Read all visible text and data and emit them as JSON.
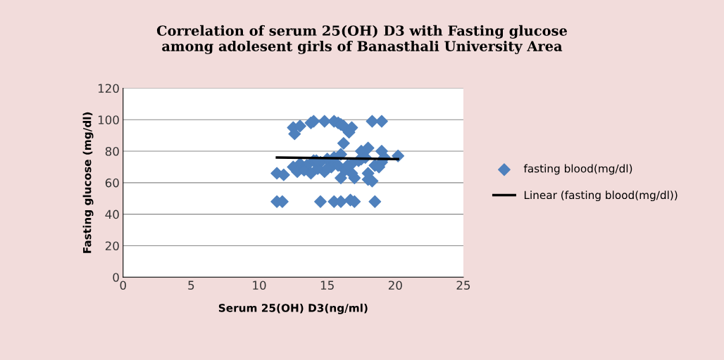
{
  "chart_data": {
    "type": "scatter",
    "title": "Correlation of serum 25(OH) D3 with Fasting glucose\namong adolesent girls of Banasthali University Area",
    "xlabel": "Serum 25(OH) D3(ng/ml)",
    "ylabel": "Fasting glucose (mg/dl)",
    "xlim": [
      0,
      25
    ],
    "xticks": [
      0,
      5,
      10,
      15,
      20,
      25
    ],
    "ylim": [
      0,
      120
    ],
    "yticks": [
      0,
      20,
      40,
      60,
      80,
      100,
      120
    ],
    "grid": "y",
    "legend": "right",
    "marker": "diamond",
    "series": [
      {
        "name": "fasting blood(mg/dl)",
        "color": "#4f81bd",
        "x": [
          11.3,
          11.7,
          11.3,
          11.8,
          12.5,
          12.6,
          13.0,
          13.8,
          14.0,
          14.8,
          15.5,
          15.8,
          16.0,
          16.2,
          16.8,
          16.6,
          16.2,
          18.3,
          19.0,
          14.5,
          15.5,
          16.0,
          16.7,
          17.0,
          18.5,
          20.2,
          19.0,
          18.0,
          17.5,
          16.0,
          17.0,
          18.0,
          18.3,
          18.0,
          16.8,
          12.5,
          13.0,
          13.5,
          14.0,
          14.5,
          15.0,
          15.5,
          16.0,
          12.8,
          13.3,
          13.8,
          14.3,
          14.8,
          15.3,
          15.8,
          16.3,
          16.8,
          17.3,
          17.8,
          18.5,
          19.0,
          19.2,
          14.2,
          15.0,
          16.5,
          17.5,
          18.8
        ],
        "values": [
          48,
          48,
          66,
          65,
          95,
          91,
          96,
          98,
          99,
          99,
          99,
          98,
          97,
          96,
          95,
          92,
          85,
          99,
          99,
          48,
          48,
          48,
          49,
          48,
          48,
          77,
          80,
          82,
          80,
          63,
          63,
          62,
          61,
          66,
          66,
          70,
          72,
          71,
          74,
          73,
          75,
          76,
          78,
          67,
          68,
          66,
          69,
          67,
          70,
          71,
          68,
          72,
          74,
          76,
          71,
          73,
          76,
          74,
          69,
          71,
          75,
          70
        ]
      },
      {
        "name": "Linear (fasting blood(mg/dl))",
        "type": "line",
        "color": "#000000",
        "marker": "none",
        "line_style": "solid",
        "x": [
          11.3,
          20.2
        ],
        "values": [
          76,
          75
        ]
      }
    ]
  }
}
